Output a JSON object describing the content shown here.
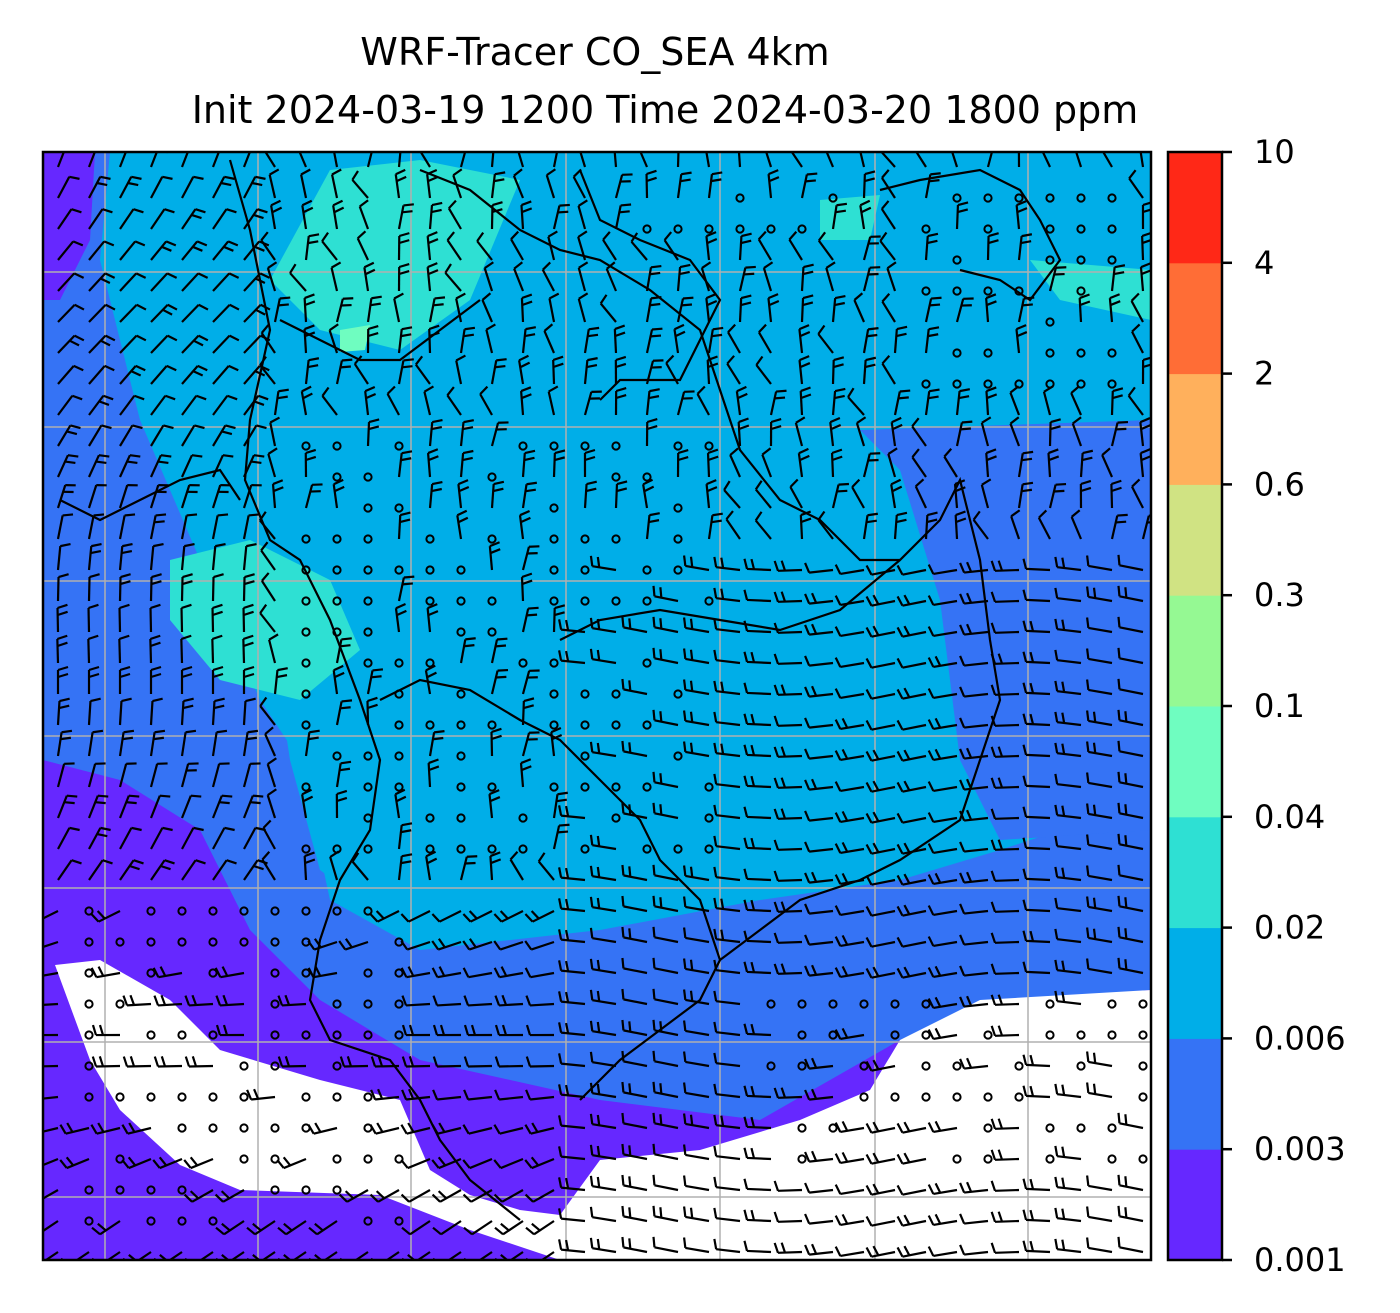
{
  "chart_data": {
    "type": "heatmap",
    "title_line_1": "WRF-Tracer CO_SEA 4km",
    "title_line_2": "Init 2024-03-19 1200 Time 2024-03-20 1800 ppm",
    "colorbar": {
      "levels": [
        "0.001",
        "0.003",
        "0.006",
        "0.02",
        "0.04",
        "0.1",
        "0.3",
        "0.6",
        "2",
        "4",
        "10"
      ],
      "colors": [
        "#6628ff",
        "#3573f5",
        "#00aee8",
        "#2ee0d3",
        "#6ffdc0",
        "#95f993",
        "#d0e383",
        "#ffb05c",
        "#ff6d36",
        "#ff2817"
      ]
    },
    "grid": true,
    "background_min_color": "#ffffff",
    "overlay": "wind-barbs-and-calm-circles",
    "coastline_color": "#000000"
  }
}
